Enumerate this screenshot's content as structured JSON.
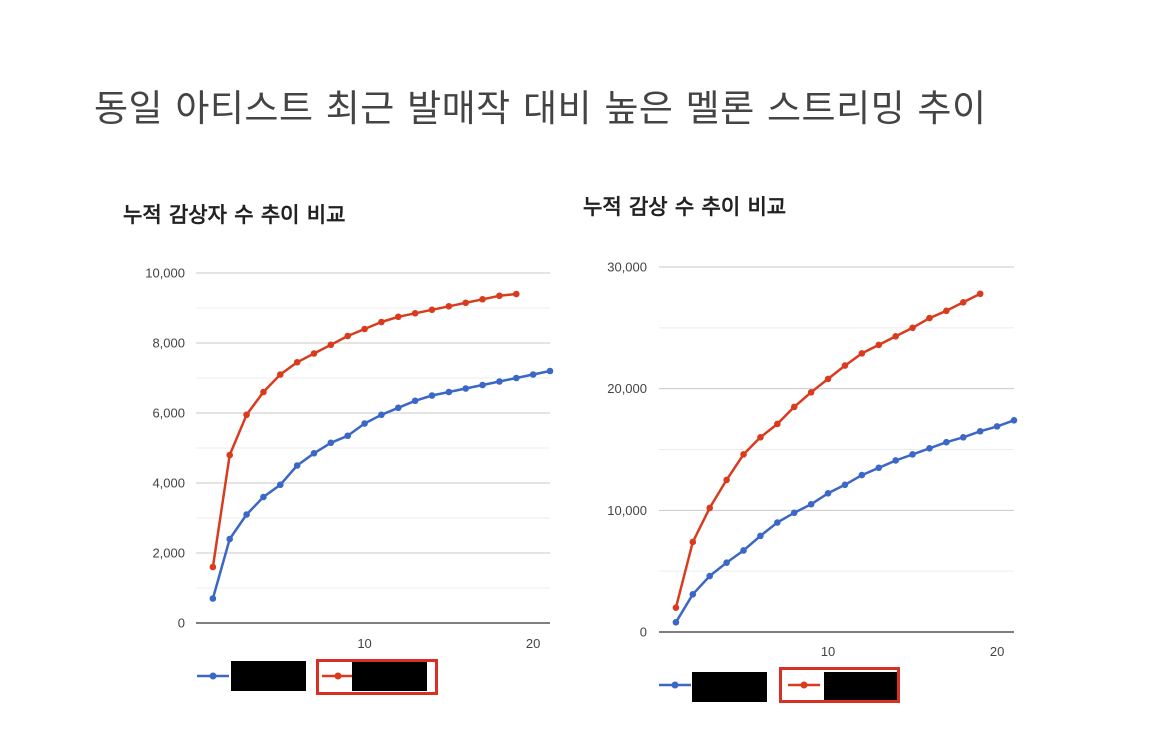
{
  "slide": {
    "title": "동일 아티스트 최근 발매작 대비 높은 멜론 스트리밍 추이"
  },
  "colors": {
    "series_blue": "#3b67c7",
    "series_red": "#d93b1e",
    "grid": "#cccccc",
    "highlight_box": "#d93025"
  },
  "chart_data": [
    {
      "type": "line",
      "title": "누적 감상자 수 추이 비교",
      "xlabel": "",
      "ylabel": "",
      "xlim": [
        0,
        21
      ],
      "ylim": [
        0,
        10000
      ],
      "y_ticks": [
        0,
        2000,
        4000,
        6000,
        8000,
        10000
      ],
      "y_tick_labels": [
        "0",
        "2,000",
        "4,000",
        "6,000",
        "8,000",
        "10,000"
      ],
      "x_ticks": [
        10,
        20
      ],
      "x_tick_labels": [
        "10",
        "20"
      ],
      "grid": true,
      "legend": "bottom",
      "series": [
        {
          "color": "#3b67c7",
          "x": [
            1,
            2,
            3,
            4,
            5,
            6,
            7,
            8,
            9,
            10,
            11,
            12,
            13,
            14,
            15,
            16,
            17,
            18,
            19,
            20,
            21
          ],
          "values": [
            700,
            2400,
            3100,
            3600,
            3950,
            4500,
            4850,
            5150,
            5350,
            5700,
            5950,
            6150,
            6350,
            6500,
            6600,
            6700,
            6800,
            6900,
            7000,
            7100,
            7200
          ]
        },
        {
          "color": "#d93b1e",
          "x": [
            1,
            2,
            3,
            4,
            5,
            6,
            7,
            8,
            9,
            10,
            11,
            12,
            13,
            14,
            15,
            16,
            17,
            18,
            19
          ],
          "values": [
            1600,
            4800,
            5950,
            6600,
            7100,
            7450,
            7700,
            7950,
            8200,
            8400,
            8600,
            8750,
            8850,
            8950,
            9050,
            9150,
            9250,
            9350,
            9400
          ]
        }
      ]
    },
    {
      "type": "line",
      "title": "누적 감상 수 추이 비교",
      "xlabel": "",
      "ylabel": "",
      "xlim": [
        0,
        21
      ],
      "ylim": [
        0,
        30000
      ],
      "y_ticks": [
        0,
        10000,
        20000,
        30000
      ],
      "y_tick_labels": [
        "0",
        "10,000",
        "20,000",
        "30,000"
      ],
      "x_ticks": [
        10,
        20
      ],
      "x_tick_labels": [
        "10",
        "20"
      ],
      "grid": true,
      "legend": "bottom",
      "series": [
        {
          "color": "#3b67c7",
          "x": [
            1,
            2,
            3,
            4,
            5,
            6,
            7,
            8,
            9,
            10,
            11,
            12,
            13,
            14,
            15,
            16,
            17,
            18,
            19,
            20,
            21
          ],
          "values": [
            800,
            3100,
            4600,
            5700,
            6700,
            7900,
            9000,
            9800,
            10500,
            11400,
            12100,
            12900,
            13500,
            14100,
            14600,
            15100,
            15600,
            16000,
            16500,
            16900,
            17400
          ]
        },
        {
          "color": "#d93b1e",
          "x": [
            1,
            2,
            3,
            4,
            5,
            6,
            7,
            8,
            9,
            10,
            11,
            12,
            13,
            14,
            15,
            16,
            17,
            18,
            19
          ],
          "values": [
            2000,
            7400,
            10200,
            12500,
            14600,
            16000,
            17100,
            18500,
            19700,
            20800,
            21900,
            22900,
            23600,
            24300,
            25000,
            25800,
            26400,
            27100,
            27800
          ]
        }
      ]
    }
  ]
}
